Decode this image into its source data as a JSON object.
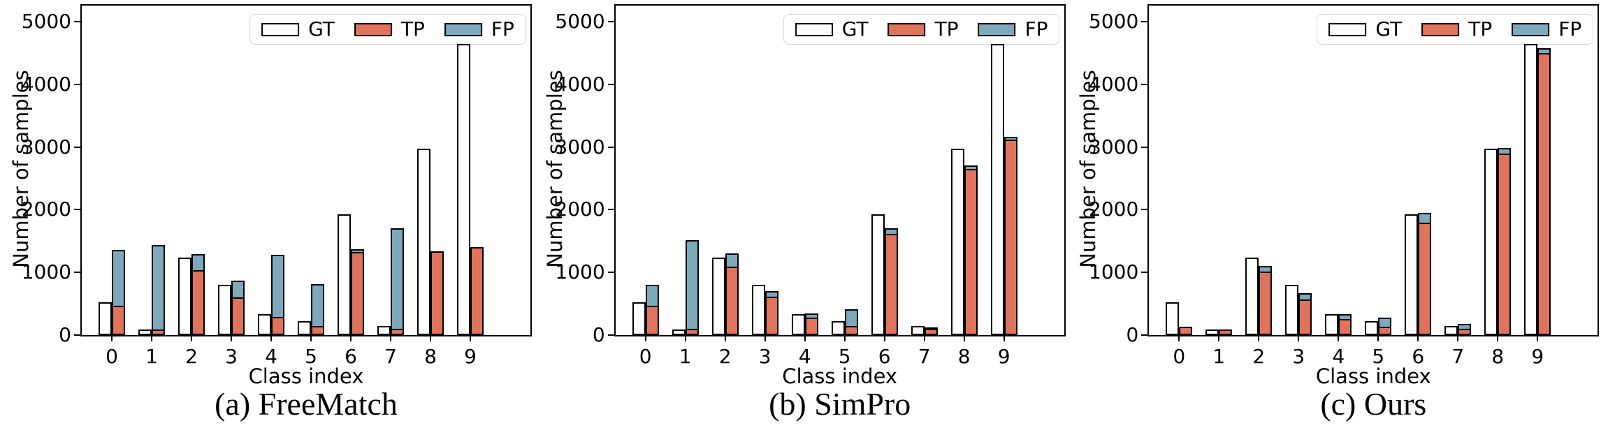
{
  "figure_background": "#ffffff",
  "colors": {
    "gt_fill": "#ffffff",
    "tp_fill": "#e0735c",
    "fp_fill": "#7ea8bc",
    "bar_edge": "#000000",
    "axis_color": "#000000"
  },
  "legend": {
    "items": [
      {
        "label": "GT",
        "color_key": "gt_fill"
      },
      {
        "label": "TP",
        "color_key": "tp_fill"
      },
      {
        "label": "FP",
        "color_key": "fp_fill"
      }
    ]
  },
  "axes": {
    "ylabel": "Number of samples",
    "xlabel": "Class index",
    "yticks": [
      0,
      1000,
      2000,
      3000,
      4000,
      5000
    ],
    "xticklabels": [
      "0",
      "1",
      "2",
      "3",
      "4",
      "5",
      "6",
      "7",
      "8",
      "9"
    ]
  },
  "captions": [
    "(a) FreeMatch",
    "(b) SimPro",
    "(c) Ours"
  ],
  "chart_data": [
    {
      "type": "bar",
      "title": "(a) FreeMatch",
      "xlabel": "Class index",
      "ylabel": "Number of samples",
      "categories": [
        "0",
        "1",
        "2",
        "3",
        "4",
        "5",
        "6",
        "7",
        "8",
        "9"
      ],
      "ylim": [
        0,
        5256
      ],
      "yticks": [
        0,
        1000,
        2000,
        3000,
        4000,
        5000
      ],
      "grid": false,
      "legend_position": "upper center",
      "bar_layout": "GT drawn as separate left bar; FP stacked on top of TP in right bar",
      "series": [
        {
          "name": "GT",
          "values": [
            520,
            90,
            1240,
            800,
            330,
            220,
            1930,
            140,
            2970,
            4640
          ]
        },
        {
          "name": "TP",
          "values": [
            470,
            90,
            1040,
            600,
            290,
            150,
            1330,
            100,
            1340,
            1400
          ]
        },
        {
          "name": "FP",
          "values": [
            890,
            1350,
            250,
            270,
            990,
            660,
            40,
            1600,
            0,
            0
          ]
        }
      ]
    },
    {
      "type": "bar",
      "title": "(b) SimPro",
      "xlabel": "Class index",
      "ylabel": "Number of samples",
      "categories": [
        "0",
        "1",
        "2",
        "3",
        "4",
        "5",
        "6",
        "7",
        "8",
        "9"
      ],
      "ylim": [
        0,
        5256
      ],
      "yticks": [
        0,
        1000,
        2000,
        3000,
        4000,
        5000
      ],
      "grid": false,
      "legend_position": "upper center",
      "bar_layout": "GT drawn as separate left bar; FP stacked on top of TP in right bar",
      "series": [
        {
          "name": "GT",
          "values": [
            520,
            90,
            1240,
            800,
            330,
            220,
            1930,
            140,
            2970,
            4640
          ]
        },
        {
          "name": "TP",
          "values": [
            470,
            100,
            1090,
            610,
            280,
            145,
            1610,
            100,
            2650,
            3120
          ]
        },
        {
          "name": "FP",
          "values": [
            330,
            1420,
            210,
            90,
            60,
            270,
            90,
            20,
            60,
            45
          ]
        }
      ]
    },
    {
      "type": "bar",
      "title": "(c) Ours",
      "xlabel": "Class index",
      "ylabel": "Number of samples",
      "categories": [
        "0",
        "1",
        "2",
        "3",
        "4",
        "5",
        "6",
        "7",
        "8",
        "9"
      ],
      "ylim": [
        0,
        5256
      ],
      "yticks": [
        0,
        1000,
        2000,
        3000,
        4000,
        5000
      ],
      "grid": false,
      "legend_position": "upper center",
      "bar_layout": "GT drawn as separate left bar; FP stacked on top of TP in right bar",
      "series": [
        {
          "name": "GT",
          "values": [
            520,
            90,
            1240,
            800,
            330,
            220,
            1930,
            140,
            2970,
            4640
          ]
        },
        {
          "name": "TP",
          "values": [
            130,
            90,
            1015,
            570,
            260,
            135,
            1790,
            100,
            2900,
            4500
          ]
        },
        {
          "name": "FP",
          "values": [
            0,
            0,
            85,
            100,
            70,
            145,
            160,
            80,
            80,
            80
          ]
        }
      ]
    }
  ]
}
